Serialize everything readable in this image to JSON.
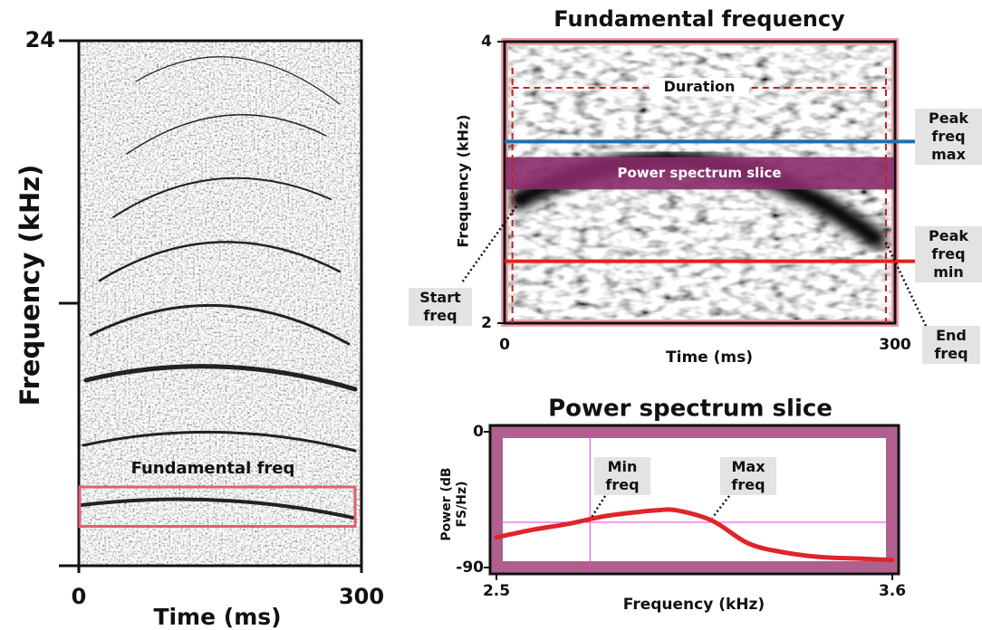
{
  "chart_data": [
    {
      "type": "spectrogram",
      "xlabel": "Time (ms)",
      "ylabel": "Frequency (kHz)",
      "xlim": [
        0,
        300
      ],
      "ylim": [
        0,
        24
      ],
      "xticks": [
        0,
        300
      ],
      "yticks": [
        {
          "value": 0,
          "label": null
        },
        {
          "value": 12,
          "label": null
        },
        24
      ],
      "annotation": "Fundamental freq",
      "fundamental_box": [
        1.8,
        3.6
      ],
      "box_color": "#e06070"
    },
    {
      "type": "spectrogram",
      "title": "Fundamental frequency",
      "xlabel": "Time (ms)",
      "ylabel": "Frequency (kHz)",
      "xlim": [
        0,
        300
      ],
      "ylim": [
        2,
        4
      ],
      "xticks": [
        0,
        300
      ],
      "yticks": [
        2,
        4
      ],
      "duration": [
        6,
        293
      ],
      "duration_label": "Duration",
      "slice": [
        2.95,
        3.18
      ],
      "slice_label": "Power spectrum slice",
      "slice_color": "#8a2a6a",
      "peak_freq_max": 3.29,
      "peak_max_label": "Peak freq max",
      "peak_max_color": "#1f6fb4",
      "peak_freq_min": 2.44,
      "peak_min_label": "Peak freq min",
      "peak_min_color": "#e8201c",
      "start_label": "Start freq",
      "end_label": "End freq"
    },
    {
      "type": "line",
      "title": "Power spectrum slice",
      "xlabel": "Frequency (kHz)",
      "ylabel": "Power (dB FS/Hz)",
      "x": [
        2.5,
        2.6,
        2.7,
        2.8,
        2.9,
        2.95,
        3.0,
        3.1,
        3.2,
        3.3,
        3.4,
        3.5,
        3.6
      ],
      "values": [
        -70,
        -65,
        -61,
        -56,
        -53,
        -52,
        -52,
        -59,
        -74,
        -80,
        -83,
        -84,
        -85
      ],
      "color": "#e0242a",
      "xlim": [
        2.5,
        3.6
      ],
      "ylim": [
        -90,
        0
      ],
      "xticks": [
        2.5,
        3.6
      ],
      "yticks": [
        -90,
        0
      ],
      "threshold": -60,
      "min_freq": 2.76,
      "max_freq": 3.11,
      "min_label": "Min freq",
      "max_label": "Max freq",
      "frame_color": "#b0608f",
      "guide_color": "#e040e0"
    }
  ]
}
